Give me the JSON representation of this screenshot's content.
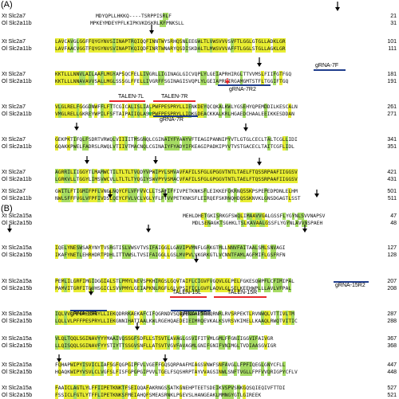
{
  "panels": [
    {
      "label": "(A)",
      "blocks": [
        {
          "rows": [
            {
              "name": "Xt Slc2a7",
              "seq": "MDYQPLLHKKQ----TSRPPISRLF",
              "num": "21",
              "indent": 51
            },
            {
              "name": "Ol Slc2a11b",
              "seq": "MPKEYMDEYPFLKIPKVKDSKRLKFPNKSLL",
              "num": "31",
              "indent": 44
            }
          ]
        },
        {
          "rows": [
            {
              "name": "Xt Slc2a7",
              "seq": "LAVCAVGLGGFFQYGYNVSIINAPTRQIQQFINNTWYSRHQSNLEEGWLTLVWSVVVSVFTLGGLGTGLLADKLGR",
              "num": "101",
              "indent": 0
            },
            {
              "name": "Ol Slc2a11b",
              "seq": "LAVFAACVGGTFQYGYNVSVINAPTKQIQDFINRTWNARYQSDISKDALTLMWSVVVAFFTLGGLSTGLLAGKLGR",
              "num": "111",
              "indent": 0
            }
          ]
        },
        {
          "rows": [
            {
              "name": "Xt Slc2a7",
              "seq": "KKTLLLNNVLAILAAFLMGYAPSQCFELLIVGRLLIGINAGLGICVQPLYLGEIAPRHIRGLTTVVMSLFIIFGTFGQ",
              "num": "181",
              "indent": 0
            },
            {
              "name": "Ol Slc2a11b",
              "seq": "KKTLLLNNAVAVVSALLMGLSSSGLFFELLIVGRFFSGINAGISVQPLYLGEIAPREIRGAMGMTSTFLTGGIFTGQ",
              "num": "191",
              "indent": 0
            }
          ]
        },
        {
          "rows": [
            {
              "name": "Xt Slc2a7",
              "seq": "VLGLRELFGGGDNWFFLFTTCGICALISLIALPWFPESPRYLLIENKDEYQCQKALKWLYGSEHYQPEMDDILKESCALN",
              "num": "261",
              "indent": 0
            },
            {
              "name": "Ol Slc2a11b",
              "seq": "VMGLRELLGKREYWPILFSFTAIPAIIQLASLPWFPESPRYLLIDKGDEACKKALKRLHGAEDCHAALEEIKKESDDAN",
              "num": "271",
              "indent": 0
            }
          ]
        },
        {
          "rows": [
            {
              "name": "Xt Slc2a7",
              "seq": "GEKPKTIFQLFSDRTVRWQLVIIIITMSGNQLCGINAIYFYAAYVFTEAGIPANNIPYVTLGTGLCECLTALTCGLLIDI",
              "num": "341",
              "indent": 0
            },
            {
              "name": "Ol Slc2a11b",
              "seq": "GQAKKPWELFADRSLRWQLVTIIVTMACNQLCGINAIYFYADYIFKEAGIPADKIPYVTVSTGACECLTAITCGFLIDL",
              "num": "351",
              "indent": 0
            }
          ]
        },
        {
          "rows": [
            {
              "name": "Xt Slc2a7",
              "seq": "AGRRILIIGGYTLMAMWCTILTLTLTVQDYVPWIPYLSMVAVFAFILSFGLGPGGVTNTLTAELFTQSSRPAAFIIGGSV",
              "num": "421",
              "indent": 0
            },
            {
              "name": "Ol Slc2a11b",
              "seq": "LGRKVLLTGGYLIMSVWCVLLTLTLTYQGIYSWVPYVSMACVFAFILSFGLGPGGVTNTLTAELFTQSSRPAAFIIGGSV",
              "num": "431",
              "indent": 0
            }
          ]
        },
        {
          "rows": [
            {
              "name": "Xt Slc2a7",
              "seq": "GWITLFTIGMIFPFLVNGLNQYCFLVFFVVCLLTSAFIFFIVPETKNKSFLEIKKEFQKRNQSSKPSPEPEDPDNLELHM",
              "num": "501",
              "indent": 0
            },
            {
              "name": "Ol Slc2a11b",
              "seq": "NWLSFFFVGLVFPFIVDSLQEYCFVLVCLVGLYFLFTVVPETKNKSFLEIRQEFSKRNQHDQSSKNVKLGNSDGAGTLSST",
              "num": "511",
              "indent": 0
            }
          ]
        }
      ],
      "annotations": [
        {
          "label": "gRNA-7F",
          "kind": "gRNA"
        },
        {
          "label": "gRNA-7R2",
          "kind": "gRNA"
        },
        {
          "label": "TALEN-7L",
          "kind": "TALEN"
        },
        {
          "label": "TALEN-7R",
          "kind": "TALEN"
        },
        {
          "label": "gRNA-7R",
          "kind": "gRNA"
        }
      ]
    },
    {
      "label": "(B)",
      "blocks": [
        {
          "rows": [
            {
              "name": "Xt Slc2a15a",
              "seq": "MEHLDHETGKISRKGFSWQLIMAAVVGALGSSFLYGYNLSVVNAPSV",
              "num": "47",
              "indent": 160
            },
            {
              "name": "Ol Slc2a15b",
              "seq": "MDLSENAGKTSGHKLTSLKAVAALGSSFLYGYNLAVVNSPAEH",
              "num": "48",
              "indent": 172
            }
          ]
        },
        {
          "rows": [
            {
              "name": "Xt Slc2a15a",
              "seq": "IQELYNESWSARYNYTVSRGTISLVWSVTVSIFAIGGLLGAVIPVMNFLGRKGTMLLNNVFAITAALSMLSNVAGI",
              "num": "127",
              "indent": 0
            },
            {
              "name": "Ol Slc2a15b",
              "seq": "IKAFYNETLEHRHDRTPDHLITTVWSLTVSIFAIGGLLGSLMVPVLYKGRKGTLVCNNTFAMLAGFMIFLGSFRFN",
              "num": "128",
              "indent": 0
            }
          ]
        },
        {
          "rows": [
            {
              "name": "Xt Slc2a15a",
              "seq": "PEMLILGRFIMGIDGGIALSTLPMYLNEVSPKHIRGSLGQVTAIFLCIGVFVGQVLGLPELFGKESQWPFLCFIMIPAL",
              "num": "207",
              "indent": 0
            },
            {
              "name": "Ol Slc2a15b",
              "seq": "PAMVITGRFITGVHSGICLSVVPMYLGEIAPKNLRGFLGLVPSIFICLGVFLAQVLGLSELKEEHWPLLLAVLVFPAL",
              "num": "208",
              "indent": 0
            }
          ]
        },
        {
          "rows": [
            {
              "name": "Xt Slc2a15a",
              "seq": "IQLVVLPFFPESPRYLLIEKQDRRKAEKAFCIFQGRNDVSQDVEDLAETIRQRNRLRVSRPEKTLRVNWQLVTTIVLTM",
              "num": "287",
              "indent": 0
            },
            {
              "name": "Ol Slc2a15b",
              "seq": "LQLLVLPFFPESPRYLLIEKGNNIHATIAALKWLRGEHQAEDEIEIMRQEVKALKSVRSVKIMELLKAAQLRWQTVITIC",
              "num": "288",
              "indent": 0
            }
          ]
        },
        {
          "rows": [
            {
              "name": "Xt Slc2a15a",
              "seq": "VLQLTQQLSGINAVYYYMAAIVQSSGFSDFLLSTSVTLAVAGLGSVIFITVMLGMLFFGNIIGGVIFAIVGR",
              "num": "367",
              "indent": 0
            },
            {
              "name": "Ol Slc2a15b",
              "seq": "LLQISQQLSGINAVFYYSTIYTTSSGVSNFLLATSVTVGVFAVAGMLGNIFGNIFVNIMGLTVDIAASGVIGR",
              "num": "368",
              "indent": 0
            }
          ]
        },
        {
          "rows": [
            {
              "name": "Xt Slc2a15a",
              "seq": "FQHAPWIPYISVICLIAFSGFQGPGIPFVLVGEFFGQSQRPAAFMIAGSVNWFSNFAVGLLFPFIQEGLGNYCFLL",
              "num": "447",
              "indent": 0
            },
            {
              "name": "Ol Slc2a15b",
              "seq": "HQAQKWIPYVSVLCLVGFSLFISFGPGPGIPVVLTGELFSQSHRPTAYVVAGSINWLSNFTVGLLFPFVVQRIGPYCFLV",
              "num": "448",
              "indent": 0
            }
          ]
        },
        {
          "rows": [
            {
              "name": "Xt Slc2a15a",
              "seq": "FAAICLAGTLYLFFIIPETKNKTFSEIQQAFAKRNGSSATKGNEHPTEETSDEIKVSPVSNKGQSQIEQIVFTTDI",
              "num": "527",
              "indent": 0
            },
            {
              "name": "Ol Slc2a15b",
              "seq": "FSSICLFGTLYTFFLIPETKNKSFMEIAHQFSMEASRNKLPGEVSLHANGEAKLMMNGYGTLGIREEK",
              "num": "521",
              "indent": 0
            }
          ]
        }
      ],
      "annotations": [
        {
          "label": "gRNA-15R2",
          "kind": "gRNA"
        },
        {
          "label": "TALEN-15L",
          "kind": "TALEN"
        },
        {
          "label": "TALEN-15R",
          "kind": "TALEN"
        },
        {
          "label": "gRNA-15R3",
          "kind": "gRNA"
        },
        {
          "label": "gRNA-15R",
          "kind": "gRNA"
        }
      ]
    }
  ],
  "colors": {
    "identical": "#e9ee33",
    "similar": "#a6dc63",
    "talen": "#e8262a",
    "grna": "#1f3d8c",
    "arrow": "#000000",
    "arrow_red": "#e8262a",
    "arrow_green": "#27a845"
  }
}
